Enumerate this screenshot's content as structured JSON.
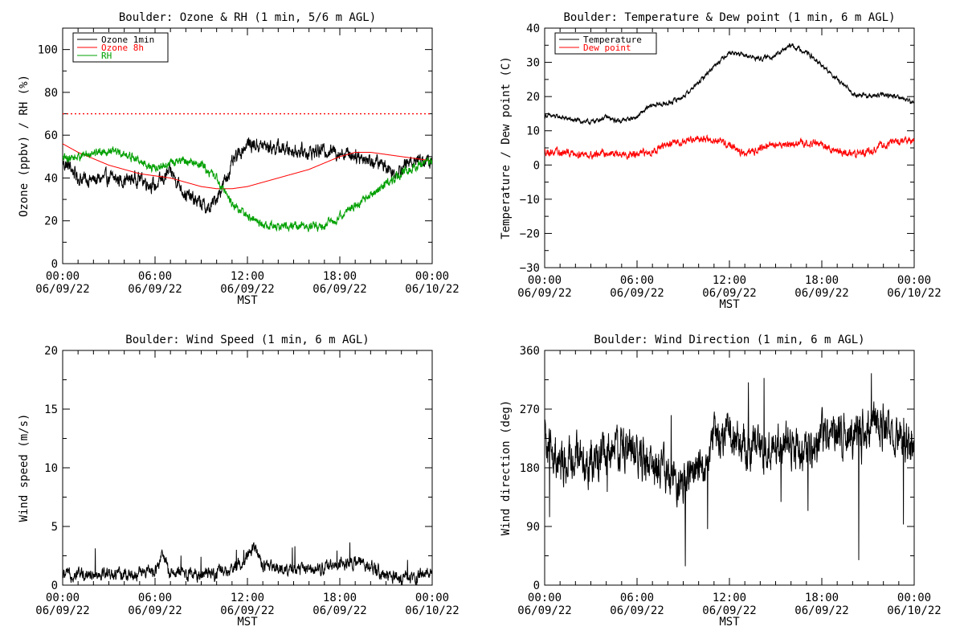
{
  "chart_data": [
    {
      "type": "line",
      "title": "Boulder: Ozone & RH (1 min, 5/6 m AGL)",
      "xlabel": "MST",
      "ylabel": "Ozone (ppbv) / RH (%)",
      "xticks": [
        {
          "l1": "00:00",
          "l2": "06/09/22",
          "h": 0
        },
        {
          "l1": "06:00",
          "l2": "06/09/22",
          "h": 6
        },
        {
          "l1": "12:00",
          "l2": "06/09/22",
          "h": 12
        },
        {
          "l1": "18:00",
          "l2": "06/09/22",
          "h": 18
        },
        {
          "l1": "00:00",
          "l2": "06/10/22",
          "h": 24
        }
      ],
      "xlim": [
        0,
        24
      ],
      "ylim": [
        0,
        110
      ],
      "yticks": [
        0,
        20,
        40,
        60,
        80,
        100
      ],
      "ytick_labels": [
        "0",
        "20",
        "40",
        "60",
        "80",
        "100"
      ],
      "hline": {
        "value": 70,
        "color": "#ff0000",
        "style": "dotted"
      },
      "legend": {
        "placement": "top-left",
        "entries": [
          {
            "label": "Ozone 1min",
            "color": "#000000"
          },
          {
            "label": "Ozone 8h",
            "color": "#ff0000"
          },
          {
            "label": "RH",
            "color": "#00a000"
          }
        ]
      },
      "series": [
        {
          "name": "Ozone 1min",
          "color": "#000000",
          "noise": 2.5,
          "points": [
            [
              0,
              47
            ],
            [
              0.5,
              45
            ],
            [
              1,
              40
            ],
            [
              2,
              39
            ],
            [
              3,
              40
            ],
            [
              4,
              39
            ],
            [
              5,
              40
            ],
            [
              6,
              36
            ],
            [
              7,
              43
            ],
            [
              7.5,
              38
            ],
            [
              8,
              32
            ],
            [
              8.5,
              30
            ],
            [
              9,
              28
            ],
            [
              9.5,
              25
            ],
            [
              10,
              31
            ],
            [
              10.5,
              38
            ],
            [
              11,
              46
            ],
            [
              11.5,
              52
            ],
            [
              12,
              56
            ],
            [
              13,
              55
            ],
            [
              14,
              54
            ],
            [
              15,
              53
            ],
            [
              16,
              52
            ],
            [
              17,
              53
            ],
            [
              18,
              52
            ],
            [
              19,
              51
            ],
            [
              20,
              48
            ],
            [
              21,
              46
            ],
            [
              21.5,
              42
            ],
            [
              22,
              45
            ],
            [
              23,
              49
            ],
            [
              24,
              47
            ]
          ]
        },
        {
          "name": "Ozone 8h",
          "color": "#ff0000",
          "noise": 0,
          "points": [
            [
              0,
              56
            ],
            [
              1,
              52
            ],
            [
              2,
              49
            ],
            [
              3,
              46
            ],
            [
              4,
              44
            ],
            [
              5,
              42
            ],
            [
              6,
              41
            ],
            [
              7,
              40
            ],
            [
              8,
              38
            ],
            [
              9,
              36
            ],
            [
              10,
              35
            ],
            [
              11,
              35
            ],
            [
              12,
              36
            ],
            [
              13,
              38
            ],
            [
              14,
              40
            ],
            [
              15,
              42
            ],
            [
              16,
              44
            ],
            [
              17,
              47
            ],
            [
              18,
              50
            ],
            [
              19,
              52
            ],
            [
              20,
              52
            ],
            [
              21,
              51
            ],
            [
              22,
              50
            ],
            [
              23,
              49
            ],
            [
              24,
              48
            ]
          ]
        },
        {
          "name": "RH",
          "color": "#00a000",
          "noise": 1.5,
          "points": [
            [
              0,
              49
            ],
            [
              1,
              50
            ],
            [
              2,
              52
            ],
            [
              3,
              53
            ],
            [
              4,
              51
            ],
            [
              5,
              48
            ],
            [
              6,
              44
            ],
            [
              7,
              47
            ],
            [
              8,
              48
            ],
            [
              9,
              46
            ],
            [
              10,
              40
            ],
            [
              10.5,
              34
            ],
            [
              11,
              28
            ],
            [
              12,
              22
            ],
            [
              13,
              18
            ],
            [
              14,
              17
            ],
            [
              15,
              18
            ],
            [
              16,
              17
            ],
            [
              17,
              18
            ],
            [
              18,
              22
            ],
            [
              19,
              27
            ],
            [
              20,
              32
            ],
            [
              21,
              37
            ],
            [
              22,
              42
            ],
            [
              23,
              46
            ],
            [
              24,
              48
            ]
          ]
        }
      ]
    },
    {
      "type": "line",
      "title": "Boulder: Temperature & Dew point (1 min, 6 m AGL)",
      "xlabel": "MST",
      "ylabel": "Temperature / Dew point (C)",
      "xticks": [
        {
          "l1": "00:00",
          "l2": "06/09/22",
          "h": 0
        },
        {
          "l1": "06:00",
          "l2": "06/09/22",
          "h": 6
        },
        {
          "l1": "12:00",
          "l2": "06/09/22",
          "h": 12
        },
        {
          "l1": "18:00",
          "l2": "06/09/22",
          "h": 18
        },
        {
          "l1": "00:00",
          "l2": "06/10/22",
          "h": 24
        }
      ],
      "xlim": [
        0,
        24
      ],
      "ylim": [
        -30,
        40
      ],
      "yticks": [
        -30,
        -20,
        -10,
        0,
        10,
        20,
        30,
        40
      ],
      "ytick_labels": [
        "−30",
        "−20",
        "−10",
        "0",
        "10",
        "20",
        "30",
        "40"
      ],
      "legend": {
        "placement": "top-left",
        "entries": [
          {
            "label": "Temperature",
            "color": "#000000"
          },
          {
            "label": "Dew point",
            "color": "#ff0000"
          }
        ]
      },
      "series": [
        {
          "name": "Temperature",
          "color": "#000000",
          "noise": 0.5,
          "points": [
            [
              0,
              14.5
            ],
            [
              1,
              14
            ],
            [
              2,
              13
            ],
            [
              3,
              12.5
            ],
            [
              4,
              14
            ],
            [
              4.5,
              13
            ],
            [
              5,
              13
            ],
            [
              6,
              14
            ],
            [
              6.5,
              16
            ],
            [
              7,
              17.5
            ],
            [
              8,
              18
            ],
            [
              9,
              20
            ],
            [
              10,
              24
            ],
            [
              11,
              29
            ],
            [
              12,
              33
            ],
            [
              13,
              32
            ],
            [
              14,
              31
            ],
            [
              15,
              32
            ],
            [
              16,
              35
            ],
            [
              17,
              33
            ],
            [
              18,
              29
            ],
            [
              19,
              25
            ],
            [
              20,
              21
            ],
            [
              21,
              20
            ],
            [
              22,
              20.5
            ],
            [
              23,
              20
            ],
            [
              24,
              18
            ]
          ]
        },
        {
          "name": "Dew point",
          "color": "#ff0000",
          "noise": 0.8,
          "points": [
            [
              0,
              4
            ],
            [
              1,
              3.5
            ],
            [
              2,
              3.5
            ],
            [
              3,
              3
            ],
            [
              4,
              3.5
            ],
            [
              5,
              3
            ],
            [
              6,
              3
            ],
            [
              7,
              4
            ],
            [
              8,
              6
            ],
            [
              9,
              7
            ],
            [
              10,
              8
            ],
            [
              11,
              7
            ],
            [
              12,
              6
            ],
            [
              13,
              3
            ],
            [
              14,
              5
            ],
            [
              15,
              6
            ],
            [
              16,
              6
            ],
            [
              17,
              6.5
            ],
            [
              18,
              6
            ],
            [
              19,
              4
            ],
            [
              20,
              3
            ],
            [
              21,
              4
            ],
            [
              22,
              6
            ],
            [
              23,
              7
            ],
            [
              24,
              7
            ]
          ]
        }
      ]
    },
    {
      "type": "line",
      "title": "Boulder: Wind Speed (1 min, 6 m AGL)",
      "xlabel": "MST",
      "ylabel": "Wind speed (m/s)",
      "xticks": [
        {
          "l1": "00:00",
          "l2": "06/09/22",
          "h": 0
        },
        {
          "l1": "06:00",
          "l2": "06/09/22",
          "h": 6
        },
        {
          "l1": "12:00",
          "l2": "06/09/22",
          "h": 12
        },
        {
          "l1": "18:00",
          "l2": "06/09/22",
          "h": 18
        },
        {
          "l1": "00:00",
          "l2": "06/10/22",
          "h": 24
        }
      ],
      "xlim": [
        0,
        24
      ],
      "ylim": [
        0,
        20
      ],
      "yticks": [
        0,
        5,
        10,
        15,
        20
      ],
      "ytick_labels": [
        "0",
        "5",
        "10",
        "15",
        "20"
      ],
      "series": [
        {
          "name": "",
          "color": "#000000",
          "noise": 0.4,
          "points": [
            [
              0,
              0.8
            ],
            [
              1,
              1
            ],
            [
              2,
              1
            ],
            [
              3,
              1
            ],
            [
              4,
              0.8
            ],
            [
              5,
              1
            ],
            [
              6,
              1.2
            ],
            [
              6.5,
              2.5
            ],
            [
              7,
              1
            ],
            [
              8,
              1
            ],
            [
              9,
              0.8
            ],
            [
              10,
              1
            ],
            [
              11,
              1.2
            ],
            [
              12,
              2.5
            ],
            [
              12.5,
              3.5
            ],
            [
              13,
              1.5
            ],
            [
              14,
              1.5
            ],
            [
              15,
              1.2
            ],
            [
              16,
              1.5
            ],
            [
              17,
              1.5
            ],
            [
              18,
              1.8
            ],
            [
              19,
              2
            ],
            [
              20,
              1.5
            ],
            [
              21,
              0.8
            ],
            [
              22,
              0.5
            ],
            [
              23,
              0.8
            ],
            [
              24,
              1.2
            ]
          ]
        }
      ]
    },
    {
      "type": "line",
      "title": "Boulder: Wind Direction (1 min, 6 m AGL)",
      "xlabel": "MST",
      "ylabel": "Wind direction (deg)",
      "xticks": [
        {
          "l1": "00:00",
          "l2": "06/09/22",
          "h": 0
        },
        {
          "l1": "06:00",
          "l2": "06/09/22",
          "h": 6
        },
        {
          "l1": "12:00",
          "l2": "06/09/22",
          "h": 12
        },
        {
          "l1": "18:00",
          "l2": "06/09/22",
          "h": 18
        },
        {
          "l1": "00:00",
          "l2": "06/10/22",
          "h": 24
        }
      ],
      "xlim": [
        0,
        24
      ],
      "ylim": [
        0,
        360
      ],
      "yticks": [
        0,
        90,
        180,
        270,
        360
      ],
      "ytick_labels": [
        "0",
        "90",
        "180",
        "270",
        "360"
      ],
      "series": [
        {
          "name": "",
          "color": "#000000",
          "noise": 25,
          "points": [
            [
              0,
              220
            ],
            [
              1,
              180
            ],
            [
              2,
              200
            ],
            [
              3,
              190
            ],
            [
              4,
              200
            ],
            [
              5,
              210
            ],
            [
              6,
              200
            ],
            [
              7,
              180
            ],
            [
              8,
              170
            ],
            [
              9,
              150
            ],
            [
              10,
              180
            ],
            [
              11,
              220
            ],
            [
              12,
              240
            ],
            [
              13,
              210
            ],
            [
              14,
              200
            ],
            [
              15,
              210
            ],
            [
              16,
              220
            ],
            [
              17,
              200
            ],
            [
              18,
              230
            ],
            [
              19,
              235
            ],
            [
              20,
              230
            ],
            [
              21,
              225
            ],
            [
              22,
              250
            ],
            [
              23,
              220
            ],
            [
              24,
              200
            ]
          ]
        }
      ]
    }
  ]
}
